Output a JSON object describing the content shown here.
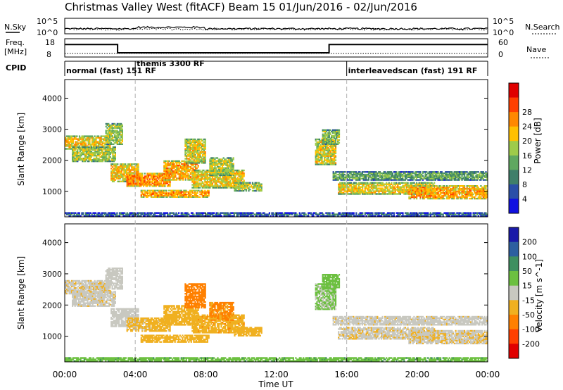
{
  "chart_data": {
    "type": "heatmap",
    "title": "Christmas Valley West (fitACF)  Beam 15  01/Jun/2016 - 02/Jun/2016",
    "xlabel": "Time UT",
    "x_ticks": [
      "00:00",
      "04:00",
      "08:00",
      "12:00",
      "16:00",
      "20:00",
      "00:00"
    ],
    "x_range_hours": [
      0,
      24
    ],
    "x_dashed_markers_hours": [
      4,
      16
    ],
    "sky_panel": {
      "left_label": "N.Sky",
      "right_label": "N.Search",
      "left_ticks": [
        "10^5",
        "10^0"
      ],
      "right_ticks": [
        "10^5",
        "10^0"
      ]
    },
    "freq_panel": {
      "left_label_lines": [
        "Freq.",
        "[MHz]"
      ],
      "right_label": "Nave",
      "left_ticks": [
        18,
        8
      ],
      "right_ticks": [
        60,
        0
      ],
      "freq_steps": [
        {
          "start_hour": 0,
          "end_hour": 3.0,
          "mhz": 14.8
        },
        {
          "start_hour": 3.0,
          "end_hour": 15.0,
          "mhz": 10.3
        },
        {
          "start_hour": 15.0,
          "end_hour": 24,
          "mhz": 14.8
        }
      ],
      "nave_level": 12
    },
    "cpid_panel": {
      "label": "CPID",
      "segments": [
        {
          "start_hour": 0,
          "end_hour": 4.0,
          "text": "normal (fast)  151 RF"
        },
        {
          "start_hour": 4.0,
          "end_hour": 16.0,
          "text": "themis 3300 RF"
        },
        {
          "start_hour": 16.0,
          "end_hour": 24,
          "text": "interleavedscan (fast)  191 RF"
        }
      ]
    },
    "panels": [
      {
        "name": "power",
        "ylabel": "Slant Range [km]",
        "ylim": [
          180,
          4600
        ],
        "y_ticks": [
          1000,
          2000,
          3000,
          4000
        ],
        "colorbar_label": "Power [dB]",
        "colorbar_ticks": [
          4,
          8,
          12,
          16,
          20,
          24,
          28
        ],
        "colorbar_colors": [
          "#1010e0",
          "#2a4fa8",
          "#3f7f6a",
          "#5fa860",
          "#9ecb4a",
          "#ffc000",
          "#ff8800",
          "#ff4000",
          "#e00000"
        ]
      },
      {
        "name": "velocity",
        "ylabel": "Slant Range [km]",
        "ylim": [
          180,
          4600
        ],
        "y_ticks": [
          1000,
          2000,
          3000,
          4000
        ],
        "colorbar_label": "Velocity [m s^-1]",
        "colorbar_ticks": [
          200,
          100,
          50,
          15,
          -15,
          -50,
          -100,
          -200
        ],
        "colorbar_colors": [
          "#1a1aa8",
          "#2d5fa0",
          "#3f8f60",
          "#6cc040",
          "#c8c8c0",
          "#f0b020",
          "#ff8000",
          "#ff4000",
          "#e00000"
        ]
      }
    ],
    "echo_regions": [
      {
        "t0": 0.0,
        "t1": 2.6,
        "r0": 2350,
        "r1": 2800,
        "power": 22,
        "vel": -8
      },
      {
        "t0": 0.4,
        "t1": 2.9,
        "r0": 1950,
        "r1": 2450,
        "power": 18,
        "vel": -5
      },
      {
        "t0": 2.3,
        "t1": 3.3,
        "r0": 2500,
        "r1": 3200,
        "power": 17,
        "vel": 2
      },
      {
        "t0": 2.6,
        "t1": 4.2,
        "r0": 1300,
        "r1": 1900,
        "power": 22,
        "vel": 0
      },
      {
        "t0": 3.5,
        "t1": 6.0,
        "r0": 1150,
        "r1": 1600,
        "power": 26,
        "vel": -25
      },
      {
        "t0": 5.6,
        "t1": 7.6,
        "r0": 1350,
        "r1": 2000,
        "power": 24,
        "vel": -35
      },
      {
        "t0": 6.8,
        "t1": 8.0,
        "r0": 1900,
        "r1": 2700,
        "power": 20,
        "vel": -70
      },
      {
        "t0": 4.3,
        "t1": 8.2,
        "r0": 800,
        "r1": 1050,
        "power": 25,
        "vel": -30
      },
      {
        "t0": 7.2,
        "t1": 10.2,
        "r0": 1100,
        "r1": 1700,
        "power": 21,
        "vel": -40
      },
      {
        "t0": 8.2,
        "t1": 9.6,
        "r0": 1500,
        "r1": 2100,
        "power": 18,
        "vel": -55
      },
      {
        "t0": 9.6,
        "t1": 11.2,
        "r0": 1000,
        "r1": 1300,
        "power": 18,
        "vel": -30
      },
      {
        "t0": 14.2,
        "t1": 15.4,
        "r0": 1850,
        "r1": 2700,
        "power": 20,
        "vel": 20
      },
      {
        "t0": 14.6,
        "t1": 15.6,
        "r0": 2500,
        "r1": 3000,
        "power": 16,
        "vel": 30
      },
      {
        "t0": 15.2,
        "t1": 24.0,
        "r0": 1350,
        "r1": 1650,
        "power": 14,
        "vel": -5
      },
      {
        "t0": 15.5,
        "t1": 21.0,
        "r0": 900,
        "r1": 1300,
        "power": 21,
        "vel": -8
      },
      {
        "t0": 19.5,
        "t1": 24.0,
        "r0": 750,
        "r1": 1200,
        "power": 24,
        "vel": -10
      },
      {
        "t0": 0.0,
        "t1": 24.0,
        "r0": 190,
        "r1": 330,
        "power": 10,
        "vel": 40
      }
    ]
  }
}
